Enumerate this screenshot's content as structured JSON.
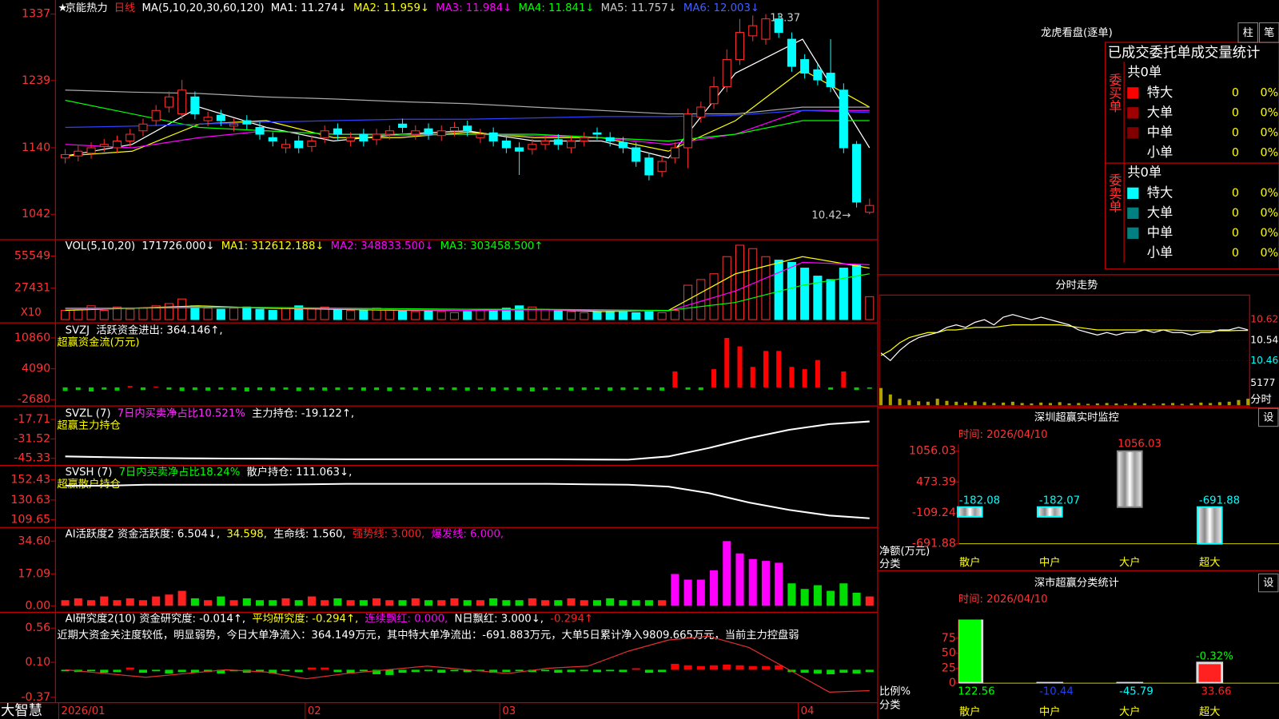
{
  "price": {
    "header": [
      {
        "text": "京能热力",
        "color": "#ffffff"
      },
      {
        "text": "日线",
        "color": "#ff2020"
      },
      {
        "text": "MA(5,10,20,30,60,120)",
        "color": "#ffffff"
      },
      {
        "text": "MA1: 11.274↓",
        "color": "#ffffff"
      },
      {
        "text": "MA2: 11.959↓",
        "color": "#ffff00"
      },
      {
        "text": "MA3: 11.984↓",
        "color": "#ff00ff"
      },
      {
        "text": "MA4: 11.841↓",
        "color": "#00ff00"
      },
      {
        "text": "MA5: 11.757↓",
        "color": "#cccccc"
      },
      {
        "text": "MA6: 12.003↓",
        "color": "#4060ff"
      }
    ],
    "high_label": "13.37",
    "low_label": "10.42→",
    "ylim": [
      1007,
      1353
    ],
    "yticks": [
      1042,
      1140,
      1239,
      1337
    ],
    "open": [
      1125,
      1128,
      1132,
      1142,
      1140,
      1150,
      1165,
      1180,
      1200,
      1190,
      1215,
      1180,
      1188,
      1172,
      1180,
      1170,
      1155,
      1140,
      1150,
      1142,
      1155,
      1168,
      1150,
      1160,
      1152,
      1160,
      1175,
      1160,
      1168,
      1158,
      1165,
      1172,
      1155,
      1162,
      1150,
      1140,
      1138,
      1145,
      1152,
      1140,
      1150,
      1162,
      1155,
      1148,
      1140,
      1125,
      1105,
      1125,
      1140,
      1185,
      1205,
      1230,
      1270,
      1305,
      1300,
      1330,
      1300,
      1270,
      1255,
      1250,
      1225,
      1145,
      1045
    ],
    "close": [
      1130,
      1135,
      1140,
      1145,
      1150,
      1160,
      1175,
      1195,
      1215,
      1225,
      1190,
      1185,
      1180,
      1175,
      1175,
      1160,
      1150,
      1145,
      1140,
      1150,
      1165,
      1160,
      1155,
      1150,
      1160,
      1165,
      1170,
      1165,
      1160,
      1165,
      1170,
      1165,
      1160,
      1150,
      1140,
      1135,
      1145,
      1150,
      1145,
      1150,
      1155,
      1160,
      1150,
      1140,
      1120,
      1100,
      1120,
      1140,
      1190,
      1200,
      1230,
      1270,
      1310,
      1320,
      1330,
      1310,
      1260,
      1250,
      1240,
      1230,
      1140,
      1060,
      1055
    ],
    "high": [
      1138,
      1143,
      1148,
      1153,
      1158,
      1168,
      1183,
      1203,
      1223,
      1240,
      1223,
      1193,
      1196,
      1183,
      1188,
      1178,
      1163,
      1153,
      1158,
      1158,
      1173,
      1176,
      1163,
      1168,
      1168,
      1173,
      1183,
      1173,
      1176,
      1173,
      1178,
      1180,
      1168,
      1170,
      1158,
      1148,
      1153,
      1158,
      1160,
      1158,
      1163,
      1170,
      1163,
      1156,
      1148,
      1133,
      1128,
      1148,
      1198,
      1208,
      1245,
      1285,
      1330,
      1335,
      1337,
      1337,
      1310,
      1278,
      1263,
      1300,
      1235,
      1150,
      1065
    ],
    "low": [
      1117,
      1120,
      1124,
      1134,
      1132,
      1142,
      1157,
      1172,
      1192,
      1182,
      1182,
      1172,
      1172,
      1164,
      1167,
      1152,
      1142,
      1132,
      1132,
      1134,
      1147,
      1152,
      1142,
      1142,
      1144,
      1152,
      1162,
      1152,
      1152,
      1150,
      1157,
      1157,
      1147,
      1142,
      1132,
      1100,
      1130,
      1137,
      1137,
      1132,
      1142,
      1152,
      1142,
      1132,
      1112,
      1092,
      1097,
      1117,
      1110,
      1177,
      1197,
      1222,
      1262,
      1297,
      1292,
      1302,
      1252,
      1242,
      1232,
      1222,
      1132,
      1052,
      1042
    ],
    "ma": [
      {
        "color": "#ffffff",
        "values": [
          1128,
          1145,
          1200,
          1170,
          1150,
          1160,
          1165,
          1150,
          1150,
          1125,
          1250,
          1300,
          1140
        ]
      },
      {
        "color": "#ffff00",
        "values": [
          1128,
          1135,
          1175,
          1180,
          1155,
          1155,
          1163,
          1155,
          1155,
          1135,
          1180,
          1255,
          1200
        ]
      },
      {
        "color": "#ff00ff",
        "values": [
          1145,
          1140,
          1155,
          1165,
          1160,
          1158,
          1160,
          1158,
          1155,
          1145,
          1160,
          1195,
          1195
        ]
      },
      {
        "color": "#00ff00",
        "values": [
          1210,
          1190,
          1170,
          1165,
          1160,
          1160,
          1160,
          1160,
          1155,
          1150,
          1160,
          1180,
          1180
        ]
      },
      {
        "color": "#aaaaaa",
        "values": [
          1225,
          1222,
          1220,
          1215,
          1212,
          1208,
          1205,
          1200,
          1195,
          1190,
          1190,
          1200,
          1200
        ]
      },
      {
        "color": "#3040ff",
        "values": [
          1170,
          1172,
          1175,
          1178,
          1180,
          1182,
          1182,
          1184,
          1186,
          1186,
          1188,
          1195,
          1192
        ]
      }
    ]
  },
  "volume": {
    "header": [
      {
        "text": "VOL(5,10,20)",
        "color": "#ffffff"
      },
      {
        "text": "171726.000↓",
        "color": "#ffffff"
      },
      {
        "text": "MA1: 312612.188↓",
        "color": "#ffff00"
      },
      {
        "text": "MA2: 348833.500↓",
        "color": "#ff00ff"
      },
      {
        "text": "MA3: 303458.500↑",
        "color": "#00ff00"
      }
    ],
    "unit": "X10",
    "ylim": [
      0,
      67000
    ],
    "yticks": [
      27431,
      55549
    ],
    "values": [
      8000,
      9000,
      12000,
      8000,
      11000,
      9000,
      10000,
      12000,
      14000,
      18000,
      12000,
      10000,
      9000,
      10000,
      11000,
      9000,
      8000,
      10000,
      12000,
      10000,
      11000,
      9000,
      8000,
      9000,
      10000,
      9000,
      8000,
      7000,
      8000,
      7000,
      6000,
      7000,
      8000,
      9000,
      10000,
      12000,
      11000,
      9000,
      8000,
      7000,
      6000,
      7000,
      8000,
      7000,
      6000,
      7000,
      6000,
      8000,
      30000,
      35000,
      40000,
      55000,
      65000,
      62000,
      55000,
      52000,
      50000,
      45000,
      38000,
      35000,
      45000,
      48000,
      20000
    ],
    "ma": [
      {
        "color": "#ffff00",
        "values": [
          8000,
          10000,
          12000,
          10000,
          9000,
          8000,
          8000,
          9000,
          7000,
          8000,
          40000,
          55000,
          45000
        ]
      },
      {
        "color": "#ff00ff",
        "values": [
          9000,
          10000,
          11000,
          10500,
          9500,
          8500,
          8000,
          8500,
          8000,
          7500,
          25000,
          50000,
          48000
        ]
      },
      {
        "color": "#00ff00",
        "values": [
          10000,
          10000,
          10500,
          10500,
          10000,
          9500,
          9000,
          9000,
          8500,
          8000,
          15000,
          30000,
          40000
        ]
      }
    ]
  },
  "svzj": {
    "header": [
      {
        "text": "SVZJ",
        "color": "#ffffff"
      },
      {
        "text": "活跃资金进出: 364.146↑,",
        "color": "#ffffff"
      }
    ],
    "subtitle": "超赢资金流(万元)",
    "ylim": [
      -3720,
      13460
    ],
    "yticks": [
      -2680,
      4090,
      10860
    ],
    "values": [
      -800,
      -600,
      -900,
      -500,
      -700,
      300,
      -600,
      200,
      -500,
      -800,
      -600,
      -700,
      -500,
      -600,
      -900,
      -600,
      -700,
      -500,
      -800,
      -600,
      -700,
      -600,
      -500,
      -700,
      -600,
      -800,
      -500,
      -600,
      -700,
      -500,
      -600,
      -700,
      -500,
      -800,
      -600,
      -700,
      -900,
      -600,
      -500,
      -700,
      -600,
      -500,
      -700,
      -600,
      -500,
      -600,
      -700,
      3500,
      -500,
      -600,
      4000,
      10860,
      9000,
      4500,
      8000,
      8000,
      4500,
      4000,
      6000,
      -500,
      3500,
      -600,
      -300
    ]
  },
  "svzl": {
    "header": [
      {
        "text": "SVZL (7)",
        "color": "#ffffff"
      },
      {
        "text": "7日内买卖净占比10.521%",
        "color": "#ff30ff"
      },
      {
        "text": "主力持仓: -19.122↑,",
        "color": "#ffffff"
      }
    ],
    "subtitle": "超赢主力持仓",
    "ylim": [
      -49.84,
      -9.26
    ],
    "yticks": [
      -45.33,
      -31.52,
      -17.71
    ],
    "values": [
      -44,
      -44.5,
      -45,
      -45.3,
      -45.5,
      -45.6,
      -45.8,
      -46,
      -46,
      -46,
      -46,
      -46,
      -46,
      -46.2,
      -46.3,
      -44,
      -38,
      -31,
      -25,
      -21,
      -19.1
    ]
  },
  "svsh": {
    "header": [
      {
        "text": "SVSH (7)",
        "color": "#ffffff"
      },
      {
        "text": "7日内买卖净占比18.24%",
        "color": "#00ff00"
      },
      {
        "text": "散户持仓: 111.063↓,",
        "color": "#ffffff"
      }
    ],
    "subtitle": "超赢散户持仓",
    "ylim": [
      102.1,
      165.9
    ],
    "yticks": [
      109.65,
      130.63,
      152.43
    ],
    "values": [
      146,
      146,
      147,
      147,
      147,
      147,
      147.5,
      148,
      148,
      148,
      148,
      148,
      148,
      147.5,
      147,
      145,
      138,
      128,
      120,
      114,
      111
    ]
  },
  "activity": {
    "header": [
      {
        "text": "AI活跃度2 资金活跃度: 6.504↓,",
        "color": "#ffffff"
      },
      {
        "text": "34.598,",
        "color": "#ffff00"
      },
      {
        "text": "生命线: 1.560,",
        "color": "#ffffff"
      },
      {
        "text": "强势线: 3.000,",
        "color": "#ff2020"
      },
      {
        "text": "爆发线: 6.000,",
        "color": "#ff00ff"
      }
    ],
    "ylim": [
      -3,
      40.6
    ],
    "yticks": [
      {
        "value": 0,
        "label": "0.00"
      },
      17.09,
      {
        "value": 34.6,
        "label": "34.60"
      }
    ],
    "values": [
      3,
      4,
      3,
      5,
      3,
      4,
      3,
      5,
      6,
      8,
      4,
      3,
      5,
      3,
      4,
      3,
      3,
      4,
      3,
      5,
      3,
      4,
      3,
      3,
      4,
      3,
      3,
      4,
      3,
      3,
      4,
      3,
      3,
      4,
      3,
      3,
      4,
      3,
      3,
      4,
      3,
      3,
      4,
      3,
      3,
      3,
      3,
      17,
      14,
      14,
      19,
      34.6,
      28,
      25,
      24,
      23,
      12,
      9,
      11,
      8,
      12,
      7,
      5
    ]
  },
  "research": {
    "header": [
      {
        "text": "AI研究度2(10) 资金研究度: -0.014↑,",
        "color": "#ffffff"
      },
      {
        "text": "平均研究度: -0.294↑,",
        "color": "#ffff00"
      },
      {
        "text": "连续飘红: 0.000,",
        "color": "#ff00ff"
      },
      {
        "text": "N日飘红: 3.000↓,",
        "color": "#ffffff"
      },
      {
        "text": "-0.294↑",
        "color": "#ff2020"
      }
    ],
    "comment": "近期大资金关注度较低，明显弱势，今日大单净流入：364.149万元，其中特大单净流出：-691.883万元，大单5日累计净入9809.665万元，当前主力控盘弱",
    "ylim": [
      -0.42,
      0.74
    ],
    "yticks": [
      -0.37,
      {
        "value": 0.1,
        "label": "0.10"
      },
      0.56
    ],
    "values": [
      -0.02,
      -0.03,
      -0.02,
      -0.04,
      -0.03,
      0.03,
      -0.04,
      -0.02,
      -0.05,
      -0.03,
      -0.04,
      -0.03,
      -0.05,
      -0.02,
      -0.04,
      -0.03,
      -0.05,
      -0.02,
      -0.03,
      0.03,
      0.03,
      -0.03,
      -0.05,
      -0.02,
      -0.06,
      -0.07,
      -0.04,
      -0.03,
      -0.02,
      -0.04,
      -0.02,
      -0.03,
      -0.02,
      -0.04,
      -0.03,
      -0.02,
      -0.03,
      -0.02,
      -0.04,
      -0.03,
      -0.02,
      -0.03,
      -0.02,
      -0.03,
      0.02,
      -0.04,
      -0.03,
      0.08,
      0.06,
      0.05,
      0.06,
      0.07,
      0.06,
      0.05,
      0.05,
      0.06,
      -0.03,
      -0.04,
      -0.05,
      -0.06,
      -0.04,
      -0.05,
      -0.03
    ],
    "line": [
      0,
      -0.05,
      -0.1,
      -0.05,
      0,
      -0.03,
      -0.12,
      -0.05,
      0,
      0.05,
      0,
      -0.05,
      0.02,
      0.05,
      0.25,
      0.4,
      0.45,
      0.3,
      0,
      -0.3,
      -0.28
    ]
  },
  "dates": [
    "2026/01",
    null,
    null,
    null,
    null,
    null,
    null,
    null,
    null,
    null,
    null,
    null,
    null,
    null,
    null,
    null,
    null,
    null,
    null,
    "02",
    null,
    null,
    null,
    null,
    null,
    null,
    null,
    null,
    null,
    null,
    null,
    null,
    null,
    null,
    "03",
    null,
    null,
    null,
    null,
    null,
    null,
    null,
    null,
    null,
    null,
    null,
    null,
    null,
    null,
    null,
    null,
    null,
    null,
    null,
    null,
    null,
    null,
    "04",
    null,
    null,
    null,
    null,
    null
  ],
  "logo": "大智慧",
  "dragon": {
    "title": "龙虎看盘(逐单)",
    "buttons": [
      "柱",
      "笔"
    ],
    "table_title": "已成交委托单成交量统计",
    "groups": [
      {
        "side": "委买单",
        "total": "共0单",
        "rows": [
          {
            "label": "特大",
            "color": "#ff0000",
            "count": "0",
            "pct": "0%"
          },
          {
            "label": "大单",
            "color": "#a00000",
            "count": "0",
            "pct": "0%"
          },
          {
            "label": "中单",
            "color": "#800000",
            "count": "0",
            "pct": "0%"
          },
          {
            "label": "小单",
            "color": null,
            "count": "0",
            "pct": "0%"
          }
        ]
      },
      {
        "side": "委卖单",
        "total": "共0单",
        "rows": [
          {
            "label": "特大",
            "color": "#00ffff",
            "count": "0",
            "pct": "0%"
          },
          {
            "label": "大单",
            "color": "#008080",
            "count": "0",
            "pct": "0%"
          },
          {
            "label": "中单",
            "color": "#008080",
            "count": "0",
            "pct": "0%"
          },
          {
            "label": "小单",
            "color": null,
            "count": "0",
            "pct": "0%"
          }
        ]
      }
    ]
  },
  "minute": {
    "title": "分时走势",
    "ylim": [
      10.41,
      10.71
    ],
    "yticks": [
      10.46,
      10.54,
      10.62
    ],
    "vol_ylim": [
      0,
      5900
    ],
    "vol_ticks": [
      5177
    ],
    "vol_label": "分时",
    "price": [
      10.49,
      10.46,
      10.5,
      10.53,
      10.55,
      10.56,
      10.57,
      10.59,
      10.6,
      10.59,
      10.61,
      10.62,
      10.6,
      10.63,
      10.64,
      10.63,
      10.62,
      10.63,
      10.62,
      10.61,
      10.6,
      10.58,
      10.57,
      10.56,
      10.57,
      10.56,
      10.57,
      10.57,
      10.58,
      10.57,
      10.58,
      10.57,
      10.57,
      10.56,
      10.57,
      10.57,
      10.58,
      10.58,
      10.59,
      10.58
    ],
    "average": [
      10.48,
      10.5,
      10.53,
      10.55,
      10.56,
      10.57,
      10.57,
      10.58,
      10.58,
      10.585,
      10.59,
      10.59,
      10.59,
      10.595,
      10.6,
      10.6,
      10.6,
      10.6,
      10.6,
      10.6,
      10.595,
      10.59,
      10.585,
      10.58,
      10.58,
      10.58,
      10.58,
      10.58,
      10.58,
      10.58,
      10.58,
      10.58,
      10.578,
      10.577,
      10.577,
      10.577,
      10.577,
      10.577,
      10.578,
      10.578
    ],
    "volume": [
      4000,
      2500,
      1500,
      1200,
      900,
      800,
      1500,
      1000,
      800,
      600,
      900,
      700,
      500,
      600,
      800,
      500,
      400,
      600,
      500,
      700,
      400,
      500,
      300,
      400,
      500,
      400,
      300,
      500,
      400,
      300,
      400,
      500,
      300,
      400,
      600,
      500,
      700,
      800,
      1200,
      1500
    ]
  },
  "sz_monitor": {
    "title": "深圳超赢实时监控",
    "button": "设",
    "time": "时间: 2026/04/10",
    "y_label": "净额(万元)",
    "x_label": "分类",
    "ylim": [
      -691.88,
      1186
    ],
    "yticks": [
      -691.88,
      -109.24,
      473.39,
      1056.03
    ],
    "categories": [
      "散户",
      "中户",
      "大户",
      "超大"
    ],
    "values": [
      -182.08,
      -182.07,
      1056.03,
      -691.88
    ]
  },
  "sz_class": {
    "title": "深市超赢分类统计",
    "button": "设",
    "time": "时间: 2026/04/10",
    "y_label": "比例%",
    "x_label": "分类",
    "ylim": [
      0,
      106
    ],
    "yticks": [
      0,
      25,
      50,
      75
    ],
    "categories": [
      "散户",
      "中户",
      "大户",
      "超大"
    ],
    "values": [
      122.56,
      -10.44,
      -45.79,
      33.66
    ],
    "colors": [
      "#00ff00",
      "#2040ff",
      "#00ffff",
      "#ff2020"
    ],
    "note": "-0.32%"
  }
}
